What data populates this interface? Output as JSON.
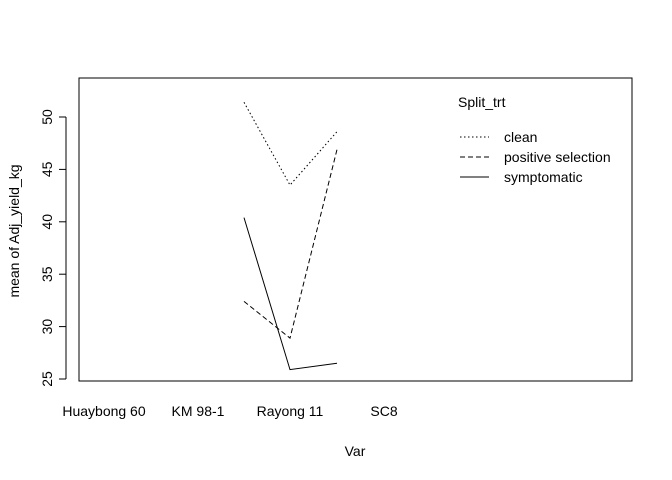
{
  "chart_data": {
    "type": "line",
    "title": "",
    "xlabel": "Var",
    "ylabel": "mean of  Adj_yield_kg",
    "categories": [
      "Huaybong 60",
      "KM 98-1",
      "Rayong 11",
      "SC8"
    ],
    "ylim": [
      25,
      53
    ],
    "yticks": [
      25,
      30,
      35,
      40,
      45,
      50
    ],
    "grid": false,
    "legend": {
      "title": "Split_trt",
      "position": "top-right"
    },
    "series": [
      {
        "name": "clean",
        "dash": "dotted",
        "x": [
          2.5,
          3.0,
          3.5
        ],
        "values": [
          51.4,
          43.5,
          48.6
        ]
      },
      {
        "name": "positive selection",
        "dash": "dashed",
        "x": [
          2.5,
          3.0,
          3.5
        ],
        "values": [
          32.4,
          28.9,
          46.9
        ]
      },
      {
        "name": "symptomatic",
        "dash": "solid",
        "x": [
          2.5,
          3.0,
          3.5
        ],
        "values": [
          40.4,
          25.9,
          26.5
        ]
      }
    ]
  }
}
